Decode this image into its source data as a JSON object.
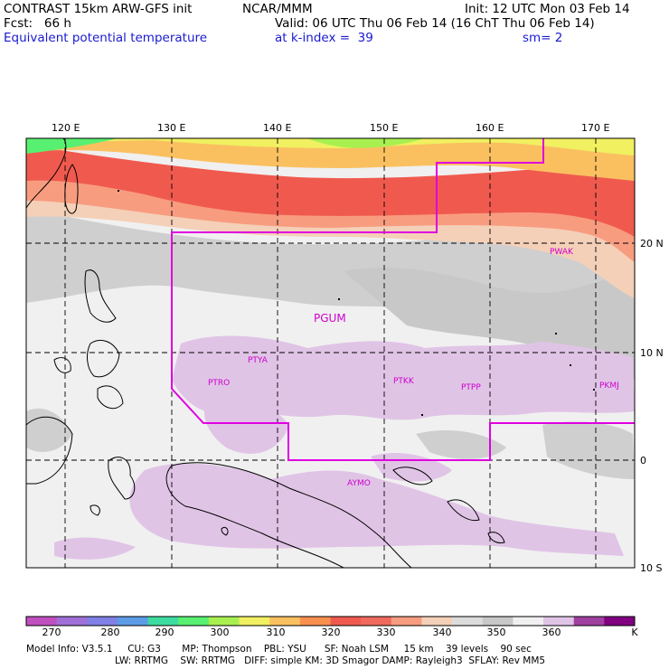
{
  "header": {
    "model_title": "CONTRAST 15km ARW-GFS init",
    "org": "NCAR/MMM",
    "init": "Init: 12 UTC Mon 03 Feb 14",
    "fcst": "Fcst:   66 h",
    "valid": "Valid: 06 UTC Thu 06 Feb 14 (16 ChT Thu 06 Feb 14)",
    "field": "Equivalent potential temperature",
    "level": "at k-index =  39",
    "smoothing": "sm= 2"
  },
  "map": {
    "lon_labels": [
      "120 E",
      "130 E",
      "140 E",
      "150 E",
      "160 E",
      "170 E"
    ],
    "lat_labels": [
      "20 N",
      "10 N",
      "0",
      "10 S"
    ],
    "stations": [
      "PWAK",
      "PGUM",
      "PTYA",
      "PTRO",
      "PTKK",
      "PTPP",
      "PKMJ",
      "AYMO"
    ]
  },
  "colorbar": {
    "labels": [
      "270",
      "280",
      "290",
      "300",
      "310",
      "320",
      "330",
      "340",
      "350",
      "360"
    ],
    "unit": "K",
    "colors": [
      "#c050c0",
      "#a070d8",
      "#8080e6",
      "#5c9ce6",
      "#3cdca0",
      "#58f070",
      "#a8f050",
      "#f0f060",
      "#fac060",
      "#fa9050",
      "#f05a4e",
      "#f06a5e",
      "#f89c80",
      "#f4d0b8",
      "#dcdcdc",
      "#c8c8c8",
      "#f0f0f0",
      "#e0c4e6",
      "#a040a0",
      "#800080"
    ]
  },
  "footer": {
    "line1": "Model Info: V3.5.1     CU: G3       MP: Thompson    PBL: YSU      SF: Noah LSM     15 km    39 levels    90 sec",
    "line2": "LW: RRTMG    SW: RRTMG   DIFF: simple KM: 3D Smagor DAMP: Rayleigh3  SFLAY: Rev MM5"
  }
}
